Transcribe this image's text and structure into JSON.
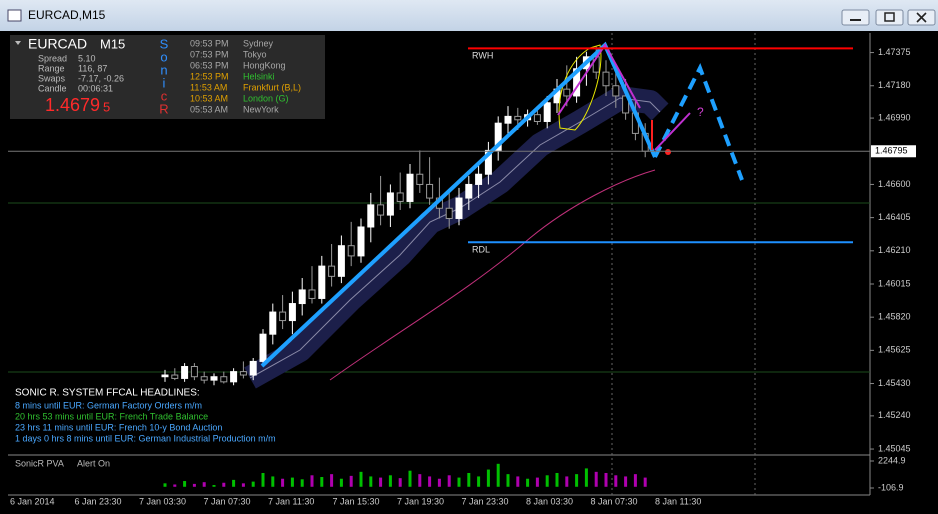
{
  "window_title": "EURCAD,M15",
  "info_panel": {
    "symbol": "EURCAD",
    "timeframe": "M15",
    "rows": [
      [
        "Spread",
        "5.10"
      ],
      [
        "Range",
        "116, 87"
      ],
      [
        "Swaps",
        "-7.17, -0.26"
      ],
      [
        "Candle",
        "00:06:31"
      ]
    ],
    "price_main": "1.4679",
    "price_pip": "5",
    "sonic_letters": [
      {
        "letter": "S",
        "color": "#2f8fff"
      },
      {
        "letter": "o",
        "color": "#2f8fff"
      },
      {
        "letter": "n",
        "color": "#2f8fff"
      },
      {
        "letter": "i",
        "color": "#2f8fff"
      },
      {
        "letter": "c",
        "color": "#e03030"
      },
      {
        "letter": "R",
        "color": "#e03030"
      }
    ],
    "clocks": [
      {
        "time": "09:53 PM",
        "city": "Sydney",
        "color": "#a8a8a8"
      },
      {
        "time": "07:53 PM",
        "city": "Tokyo",
        "color": "#a8a8a8"
      },
      {
        "time": "06:53 PM",
        "city": "HongKong",
        "color": "#a8a8a8"
      },
      {
        "time": "12:53 PM",
        "city": "Helsinki",
        "color": "#e0a000",
        "city_color": "#30c030"
      },
      {
        "time": "11:53 AM",
        "city": "Frankfurt  (B,L)",
        "color": "#e0a000"
      },
      {
        "time": "10:53 AM",
        "city": "London  (G)",
        "color": "#e0a000",
        "city_color": "#30c030"
      },
      {
        "time": "05:53 AM",
        "city": "NewYork",
        "color": "#a8a8a8"
      }
    ]
  },
  "headlines": {
    "title": "SONIC R. SYSTEM  FFCAL HEADLINES:",
    "items": [
      {
        "text": "8 mins until EUR: German Factory Orders m/m",
        "color": "#4aa8ff"
      },
      {
        "text": "20 hrs 53 mins until EUR: French Trade Balance",
        "color": "#30c030"
      },
      {
        "text": "23 hrs 11 mins until EUR: French 10-y Bond Auction",
        "color": "#4aa8ff"
      },
      {
        "text": "1 days 0 hrs 8 mins until EUR: German Industrial Production m/m",
        "color": "#4aa8ff"
      }
    ]
  },
  "chart_data": {
    "type": "candlestick",
    "candles": [
      [
        1.4547,
        1.4551,
        1.4544,
        1.4548
      ],
      [
        1.4548,
        1.4552,
        1.4545,
        1.4546
      ],
      [
        1.4546,
        1.4555,
        1.4544,
        1.4553
      ],
      [
        1.4553,
        1.4555,
        1.4545,
        1.4547
      ],
      [
        1.4547,
        1.455,
        1.4543,
        1.4545
      ],
      [
        1.4545,
        1.4549,
        1.4542,
        1.4547
      ],
      [
        1.4547,
        1.455,
        1.4543,
        1.4544
      ],
      [
        1.4544,
        1.4552,
        1.4542,
        1.455
      ],
      [
        1.455,
        1.4556,
        1.4546,
        1.4548
      ],
      [
        1.4548,
        1.4558,
        1.4545,
        1.4556
      ],
      [
        1.4556,
        1.4575,
        1.4553,
        1.4572
      ],
      [
        1.4572,
        1.459,
        1.4566,
        1.4585
      ],
      [
        1.4585,
        1.4595,
        1.4575,
        1.458
      ],
      [
        1.458,
        1.4597,
        1.4572,
        1.459
      ],
      [
        1.459,
        1.4605,
        1.4583,
        1.4598
      ],
      [
        1.4598,
        1.4612,
        1.459,
        1.4593
      ],
      [
        1.4593,
        1.4618,
        1.459,
        1.4612
      ],
      [
        1.4612,
        1.4625,
        1.46,
        1.4606
      ],
      [
        1.4606,
        1.463,
        1.4602,
        1.4624
      ],
      [
        1.4624,
        1.4638,
        1.4612,
        1.4618
      ],
      [
        1.4618,
        1.464,
        1.4614,
        1.4635
      ],
      [
        1.4635,
        1.4655,
        1.4626,
        1.4648
      ],
      [
        1.4648,
        1.4665,
        1.4636,
        1.4642
      ],
      [
        1.4642,
        1.466,
        1.4635,
        1.4655
      ],
      [
        1.4655,
        1.4667,
        1.4645,
        1.465
      ],
      [
        1.465,
        1.4672,
        1.4646,
        1.4666
      ],
      [
        1.4666,
        1.468,
        1.4655,
        1.466
      ],
      [
        1.466,
        1.4676,
        1.4648,
        1.4652
      ],
      [
        1.4652,
        1.4664,
        1.464,
        1.4646
      ],
      [
        1.4646,
        1.4655,
        1.4634,
        1.464
      ],
      [
        1.464,
        1.4658,
        1.4636,
        1.4652
      ],
      [
        1.4652,
        1.4665,
        1.4645,
        1.466
      ],
      [
        1.466,
        1.4672,
        1.4652,
        1.4666
      ],
      [
        1.4666,
        1.4685,
        1.466,
        1.468
      ],
      [
        1.468,
        1.47,
        1.4674,
        1.4696
      ],
      [
        1.4696,
        1.4706,
        1.4688,
        1.47
      ],
      [
        1.47,
        1.4705,
        1.4692,
        1.4698
      ],
      [
        1.4698,
        1.4704,
        1.4694,
        1.4701
      ],
      [
        1.4701,
        1.4706,
        1.4695,
        1.4697
      ],
      [
        1.4697,
        1.4712,
        1.4693,
        1.4708
      ],
      [
        1.4708,
        1.4722,
        1.4702,
        1.4716
      ],
      [
        1.4716,
        1.473,
        1.4706,
        1.4712
      ],
      [
        1.4712,
        1.4735,
        1.4708,
        1.4728
      ],
      [
        1.4728,
        1.4738,
        1.4718,
        1.4735
      ],
      [
        1.4735,
        1.4741,
        1.4722,
        1.4726
      ],
      [
        1.4726,
        1.4733,
        1.4712,
        1.4718
      ],
      [
        1.4718,
        1.4727,
        1.4705,
        1.4712
      ],
      [
        1.4712,
        1.4722,
        1.4698,
        1.4702
      ],
      [
        1.4702,
        1.471,
        1.4686,
        1.469
      ],
      [
        1.469,
        1.4696,
        1.4676,
        1.46795
      ]
    ],
    "up_color": "#ffffff",
    "down_color": "#9a9a9a",
    "ylim": [
      1.4501,
      1.4749
    ],
    "yticks": [
      {
        "value": 1.47375,
        "label": "1.47375"
      },
      {
        "value": 1.4718,
        "label": "1.47180"
      },
      {
        "value": 1.4699,
        "label": "1.46990"
      },
      {
        "value": 1.466,
        "label": "1.46600"
      },
      {
        "value": 1.46405,
        "label": "1.46405"
      },
      {
        "value": 1.4621,
        "label": "1.46210"
      },
      {
        "value": 1.46015,
        "label": "1.46015"
      },
      {
        "value": 1.4582,
        "label": "1.45820"
      },
      {
        "value": 1.45625,
        "label": "1.45625"
      },
      {
        "value": 1.4543,
        "label": "1.45430"
      },
      {
        "value": 1.4524,
        "label": "1.45240"
      },
      {
        "value": 1.45045,
        "label": "1.45045"
      }
    ],
    "current_price": {
      "value": 1.46795,
      "label": "1.46795"
    },
    "levels": [
      {
        "name": "RWH",
        "value": 1.474,
        "color": "#ff0000"
      },
      {
        "name": "RDL",
        "value": 1.4626,
        "color": "#1e90ff"
      }
    ],
    "annotation": "?",
    "time_labels": [
      "6 Jan 2014",
      "6 Jan 23:30",
      "7 Jan 03:30",
      "7 Jan 07:30",
      "7 Jan 11:30",
      "7 Jan 15:30",
      "7 Jan 19:30",
      "7 Jan 23:30",
      "8 Jan 03:30",
      "8 Jan 07:30",
      "8 Jan 11:30"
    ],
    "indicator": {
      "name": "SonicR PVA",
      "status": "Alert On",
      "ylim": [
        -106.9,
        2244.9
      ],
      "yticks": [
        2244.9,
        -106.9
      ],
      "values": [
        300,
        200,
        500,
        250,
        400,
        150,
        350,
        600,
        300,
        450,
        1200,
        900,
        700,
        800,
        650,
        1000,
        850,
        1100,
        700,
        950,
        1300,
        900,
        800,
        1000,
        750,
        1400,
        1100,
        900,
        700,
        1000,
        800,
        1200,
        900,
        1500,
        2000,
        1100,
        900,
        700,
        800,
        1000,
        1200,
        900,
        1100,
        1600,
        1300,
        1200,
        1000,
        900,
        1100,
        800
      ],
      "up_color": "#00c000",
      "down_color": "#b000b0"
    }
  }
}
